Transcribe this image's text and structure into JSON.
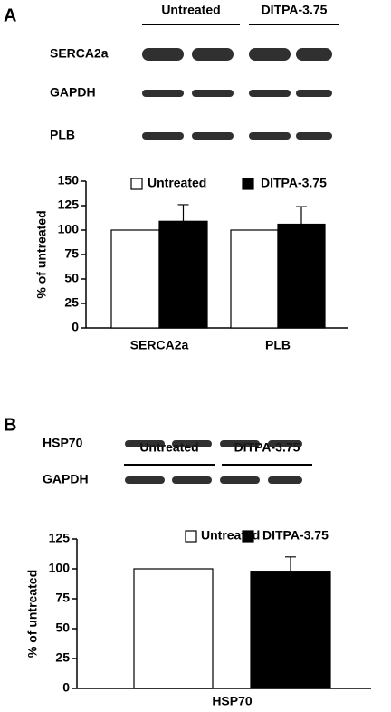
{
  "panels": [
    {
      "label": "A",
      "blot_groups": [
        "Untreated",
        "DITPA-3.75"
      ],
      "blot_rows": [
        "SERCA2a",
        "GAPDH",
        "PLB"
      ]
    },
    {
      "label": "B",
      "blot_groups": [
        "Untreated",
        "DITPA-3.75"
      ],
      "blot_rows": [
        "HSP70",
        "GAPDH"
      ]
    }
  ],
  "chart_data": [
    {
      "type": "bar",
      "ylabel": "% of untreated",
      "categories": [
        "SERCA2a",
        "PLB"
      ],
      "series": [
        {
          "name": "Untreated",
          "color": "#ffffff",
          "values": [
            100,
            100
          ]
        },
        {
          "name": "DITPA-3.75",
          "color": "#000000",
          "values": [
            109,
            106
          ],
          "errors": [
            17,
            18
          ]
        }
      ],
      "ylim": [
        0,
        150
      ],
      "yticks": [
        0,
        25,
        50,
        75,
        100,
        125,
        150
      ]
    },
    {
      "type": "bar",
      "ylabel": "% of untreated",
      "categories": [
        "HSP70"
      ],
      "series": [
        {
          "name": "Untreated",
          "color": "#ffffff",
          "values": [
            100
          ]
        },
        {
          "name": "DITPA-3.75",
          "color": "#000000",
          "values": [
            98
          ],
          "errors": [
            12
          ]
        }
      ],
      "ylim": [
        0,
        125
      ],
      "yticks": [
        0,
        25,
        50,
        75,
        100,
        125
      ]
    }
  ]
}
